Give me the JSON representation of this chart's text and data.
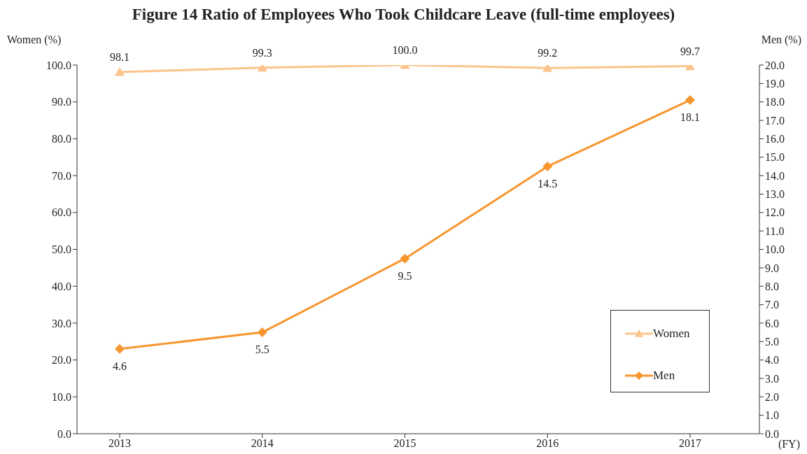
{
  "chart_data": {
    "type": "line",
    "title": "Figure 14  Ratio of Employees Who Took Childcare Leave (full-time employees)",
    "ylabel": "Women (%)",
    "y2label": "Men (%)",
    "xlabel": "(FY)",
    "categories": [
      "2013",
      "2014",
      "2015",
      "2016",
      "2017"
    ],
    "series": [
      {
        "name": "Women",
        "color": "#fbc48c",
        "marker": "triangle",
        "values": [
          98.1,
          99.3,
          100.0,
          99.2,
          99.7
        ],
        "value_labels": [
          "98.1",
          "99.3",
          "100.0",
          "99.2",
          "99.7"
        ]
      },
      {
        "name": "Men",
        "color": "#f7962f",
        "marker": "diamond",
        "axis": "y2",
        "values": [
          4.6,
          5.5,
          9.5,
          14.5,
          18.1
        ],
        "value_labels": [
          "4.6",
          "5.5",
          "9.5",
          "14.5",
          "18.1"
        ]
      }
    ],
    "ylim": [
      0,
      100
    ],
    "yticks": [
      {
        "value": 0,
        "label": "0.0"
      },
      {
        "value": 10,
        "label": "10.0"
      },
      {
        "value": 20,
        "label": "20.0"
      },
      {
        "value": 30,
        "label": "30.0"
      },
      {
        "value": 40,
        "label": "40.0"
      },
      {
        "value": 50,
        "label": "50.0"
      },
      {
        "value": 60,
        "label": "60.0"
      },
      {
        "value": 70,
        "label": "70.0"
      },
      {
        "value": 80,
        "label": "80.0"
      },
      {
        "value": 90,
        "label": "90.0"
      },
      {
        "value": 100,
        "label": "100.0"
      }
    ],
    "y2lim": [
      0,
      20
    ],
    "y2ticks": [
      {
        "value": 0,
        "label": "0.0"
      },
      {
        "value": 1,
        "label": "1.0"
      },
      {
        "value": 2,
        "label": "2.0"
      },
      {
        "value": 3,
        "label": "3.0"
      },
      {
        "value": 4,
        "label": "4.0"
      },
      {
        "value": 5,
        "label": "5.0"
      },
      {
        "value": 6,
        "label": "6.0"
      },
      {
        "value": 7,
        "label": "7.0"
      },
      {
        "value": 8,
        "label": "8.0"
      },
      {
        "value": 9,
        "label": "9.0"
      },
      {
        "value": 10,
        "label": "10.0"
      },
      {
        "value": 11,
        "label": "11.0"
      },
      {
        "value": 12,
        "label": "12.0"
      },
      {
        "value": 13,
        "label": "13.0"
      },
      {
        "value": 14,
        "label": "14.0"
      },
      {
        "value": 15,
        "label": "15.0"
      },
      {
        "value": 16,
        "label": "16.0"
      },
      {
        "value": 17,
        "label": "17.0"
      },
      {
        "value": 18,
        "label": "18.0"
      },
      {
        "value": 19,
        "label": "19.0"
      },
      {
        "value": 20,
        "label": "20.0"
      }
    ],
    "legend": "bottom right",
    "line_style": "solid"
  }
}
